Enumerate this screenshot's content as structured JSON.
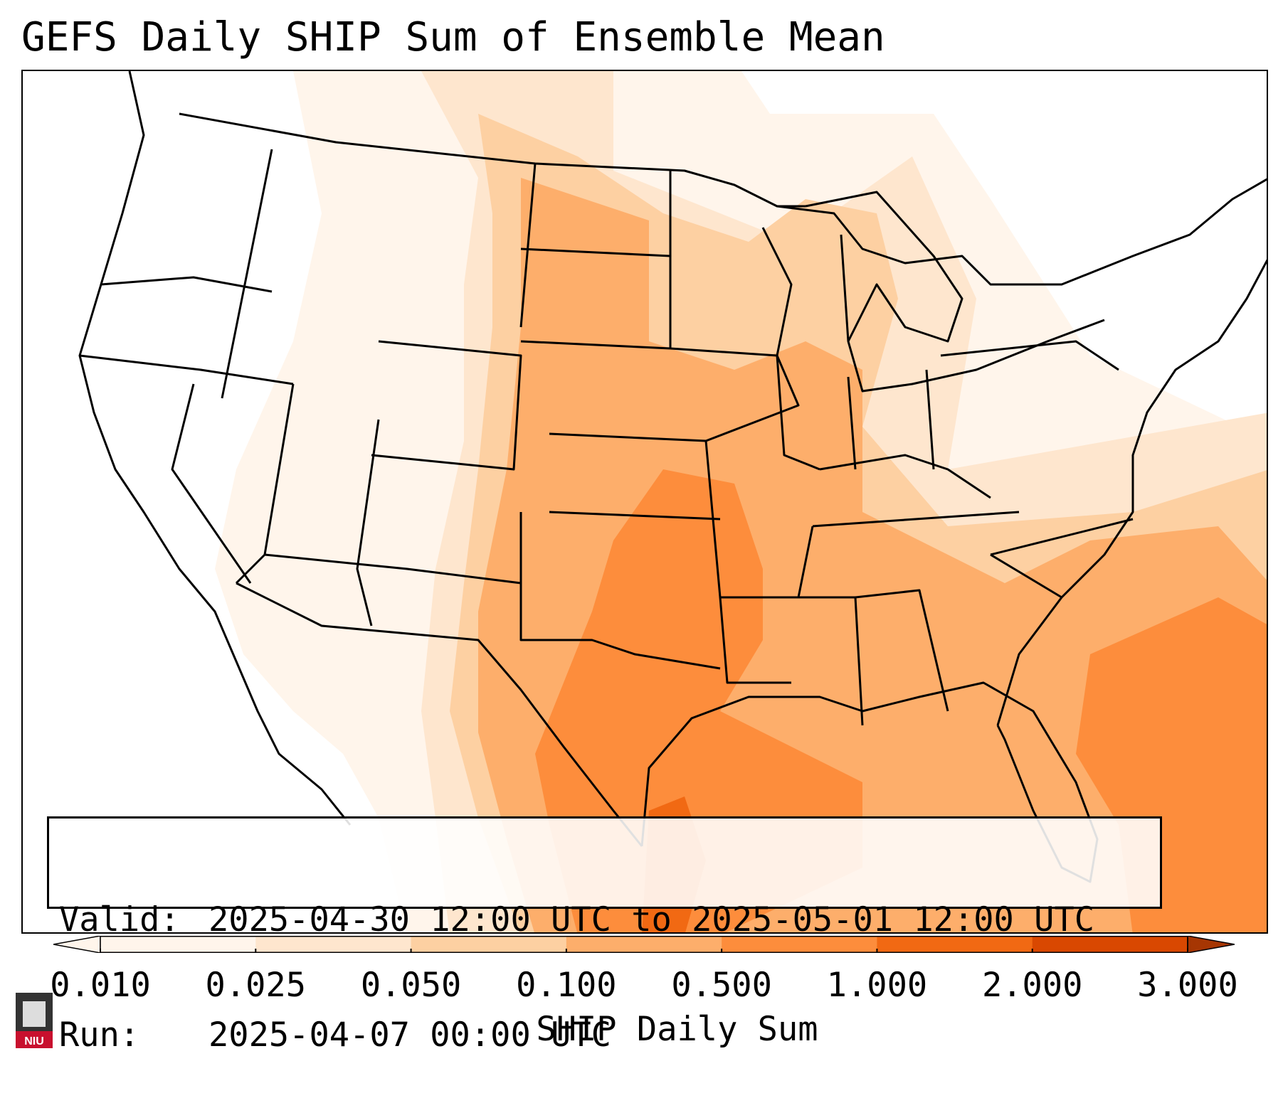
{
  "title": "GEFS Daily SHIP Sum of Ensemble Mean",
  "info": {
    "valid_label": "Valid:",
    "valid_value": "2025-04-30 12:00 UTC to 2025-05-01 12:00 UTC",
    "run_label": "Run:",
    "run_value": "2025-04-07 00:00 UTC"
  },
  "colorbar": {
    "label": "SHIP Daily Sum",
    "ticks": [
      "0.010",
      "0.025",
      "0.050",
      "0.100",
      "0.500",
      "1.000",
      "2.000",
      "3.000"
    ],
    "colors": [
      "#fff5eb",
      "#fee6ce",
      "#fdd0a2",
      "#fdae6b",
      "#fd8d3c",
      "#f16913",
      "#d94801",
      "#a63603"
    ]
  },
  "logo": {
    "text": "NIU"
  },
  "chart_data": {
    "type": "heatmap",
    "title": "GEFS Daily SHIP Sum of Ensemble Mean",
    "colorbar_label": "SHIP Daily Sum",
    "levels": [
      0.01,
      0.025,
      0.05,
      0.1,
      0.5,
      1.0,
      2.0,
      3.0
    ],
    "extend": "both"
  }
}
